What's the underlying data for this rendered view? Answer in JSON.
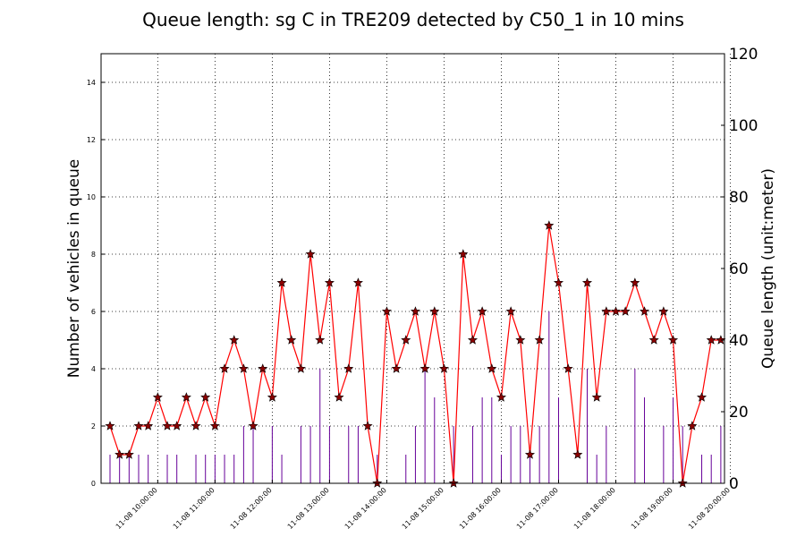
{
  "chart_data": {
    "type": "line",
    "title": "Queue length: sg C in TRE209 detected by C50_1 in 10 mins",
    "ylabel": "Number of vehicles in queue",
    "y2label": "Queue length (unit:meter)",
    "ylim": [
      0,
      15
    ],
    "y2lim": [
      0,
      120
    ],
    "yticks": [
      "0",
      "2",
      "4",
      "6",
      "8",
      "10",
      "12",
      "14"
    ],
    "y2ticks": [
      "0",
      "20",
      "40",
      "60",
      "80",
      "100",
      "120"
    ],
    "xticks": [
      "11-08 10:00:00",
      "11-08 11:00:00",
      "11-08 12:00:00",
      "11-08 13:00:00",
      "11-08 14:00:00",
      "11-08 15:00:00",
      "11-08 16:00:00",
      "11-08 17:00:00",
      "11-08 18:00:00",
      "11-08 19:00:00",
      "11-08 20:00:00"
    ],
    "x_start": "11-08 09:10:00",
    "x_step_minutes": 10,
    "grid": true,
    "colors": {
      "line": "#ff0000",
      "marker": "#8b0000",
      "bars": "#660099"
    },
    "series": [
      {
        "axis": "right",
        "type": "line",
        "values": [
          2,
          1,
          1,
          2,
          2,
          3,
          2,
          2,
          3,
          2,
          3,
          2,
          4,
          5,
          4,
          2,
          4,
          3,
          7,
          5,
          4,
          8,
          5,
          7,
          3,
          4,
          7,
          2,
          0,
          6,
          4,
          5,
          6,
          4,
          6,
          4,
          0,
          8,
          5,
          6,
          4,
          3,
          6,
          5,
          1,
          5,
          9,
          7,
          4,
          1,
          7,
          3,
          6,
          6,
          6,
          7,
          6,
          5,
          6,
          5,
          0,
          2,
          3,
          5,
          5
        ]
      },
      {
        "axis": "left",
        "type": "bar",
        "values": [
          1,
          1,
          1,
          1,
          1,
          0,
          1,
          1,
          0,
          1,
          1,
          1,
          1,
          1,
          2,
          2,
          0,
          2,
          1,
          0,
          2,
          2,
          4,
          2,
          0,
          2,
          2,
          0,
          1,
          0,
          0,
          1,
          2,
          4,
          3,
          0,
          2,
          0,
          2,
          3,
          3,
          1,
          2,
          2,
          1,
          2,
          6,
          3,
          0,
          0,
          4,
          1,
          2,
          0,
          0,
          4,
          3,
          0,
          2,
          3,
          2,
          0,
          1,
          1,
          2
        ]
      }
    ]
  }
}
